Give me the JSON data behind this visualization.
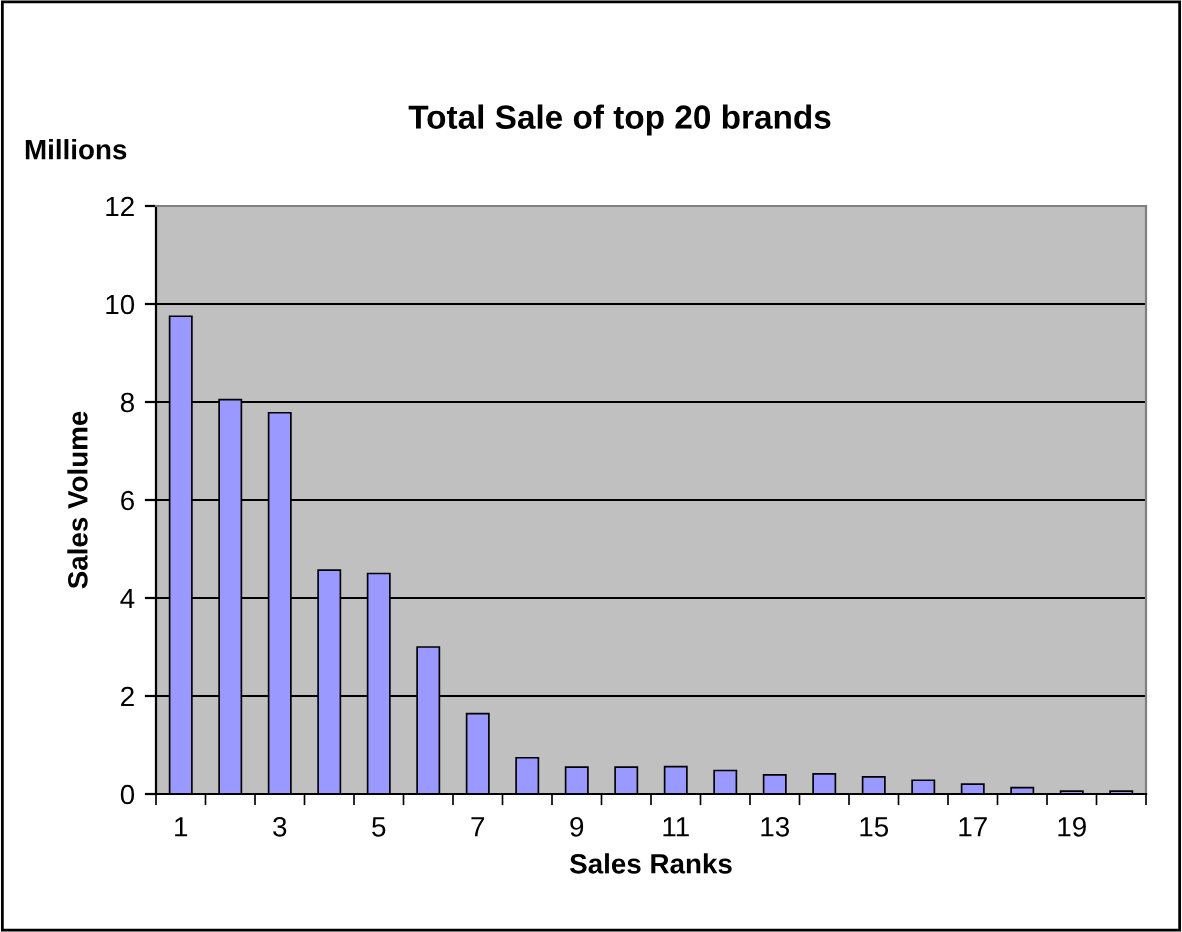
{
  "chart_data": {
    "type": "bar",
    "title": "Total Sale of top 20 brands",
    "xlabel": "Sales Ranks",
    "ylabel": "Sales Volume",
    "annotations": [
      "Millions"
    ],
    "categories": [
      "1",
      null,
      "3",
      null,
      "5",
      null,
      "7",
      null,
      "9",
      null,
      "11",
      null,
      "13",
      null,
      "15",
      null,
      "17",
      null,
      "19",
      null
    ],
    "values": [
      9.75,
      8.05,
      7.78,
      4.57,
      4.5,
      3.0,
      1.64,
      0.74,
      0.55,
      0.55,
      0.56,
      0.48,
      0.39,
      0.41,
      0.35,
      0.28,
      0.2,
      0.13,
      0.06,
      0.06
    ],
    "color": "#9999ff",
    "ylim": [
      0,
      12
    ],
    "yticks": [
      0,
      2,
      4,
      6,
      8,
      10,
      12
    ],
    "grid": "y",
    "legend": false
  }
}
